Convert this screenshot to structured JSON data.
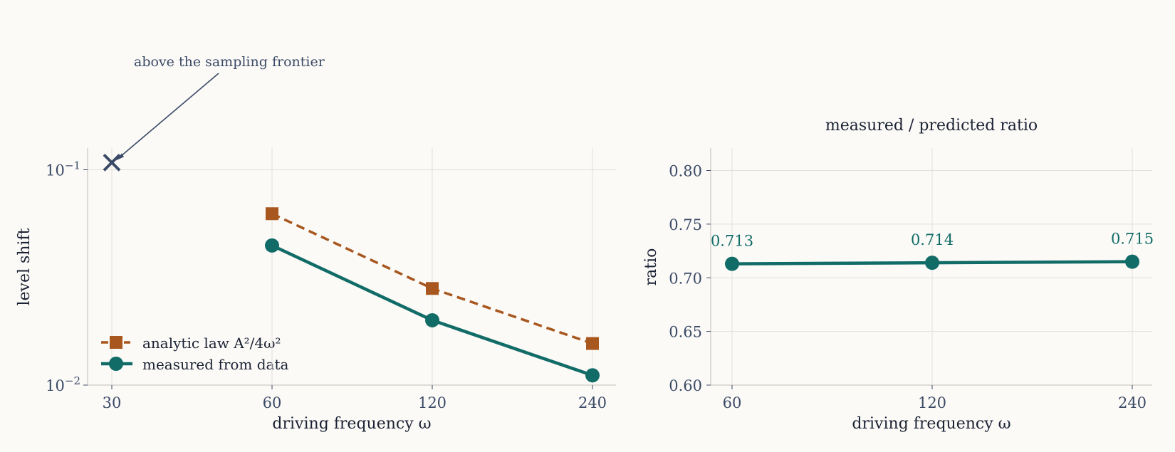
{
  "colors": {
    "background": "#fbfaf7",
    "measured": "#116b67",
    "analytic": "#a8571e",
    "annotation": "#3b4a66",
    "grid": "#e3e0db",
    "spine": "#cfcbc5",
    "tick_text": "#3b4a66",
    "label_text": "#1b2233"
  },
  "chart_data": [
    {
      "type": "line",
      "title": "",
      "xlabel": "driving frequency ω",
      "ylabel": "level shift",
      "x_scale": "log2",
      "y_scale": "log",
      "x_ticks": [
        30,
        60,
        120,
        240
      ],
      "x_tick_labels": [
        "30",
        "60",
        "120",
        "240"
      ],
      "y_ticks": [
        0.01,
        0.1
      ],
      "y_tick_labels": {
        "low": {
          "base": "10",
          "exp": "−2"
        },
        "high": {
          "base": "10",
          "exp": "−1"
        }
      },
      "ylim": [
        0.01,
        0.125
      ],
      "grid": true,
      "legend_position": "lower-left",
      "series": [
        {
          "name": "analytic law A²/4ω²",
          "marker": "square",
          "style": "dashed",
          "x": [
            60,
            120,
            240
          ],
          "values": [
            0.0625,
            0.0281,
            0.0156
          ]
        },
        {
          "name": "measured from data",
          "marker": "circle",
          "style": "solid",
          "x": [
            60,
            120,
            240
          ],
          "values": [
            0.0445,
            0.02,
            0.0111
          ]
        }
      ],
      "annotations": [
        {
          "text": "above the sampling frontier",
          "marker": "x",
          "x": 30,
          "y": 0.108
        }
      ]
    },
    {
      "type": "line",
      "title": "measured / predicted ratio",
      "xlabel": "driving frequency ω",
      "ylabel": "ratio",
      "x_scale": "log2",
      "x_ticks": [
        60,
        120,
        240
      ],
      "x_tick_labels": [
        "60",
        "120",
        "240"
      ],
      "y_ticks": [
        0.6,
        0.65,
        0.7,
        0.75,
        0.8
      ],
      "y_tick_labels": [
        "0.60",
        "0.65",
        "0.70",
        "0.75",
        "0.80"
      ],
      "ylim": [
        0.6,
        0.82
      ],
      "grid": true,
      "series": [
        {
          "name": "",
          "marker": "circle",
          "style": "solid",
          "x": [
            60,
            120,
            240
          ],
          "values": [
            0.713,
            0.714,
            0.715
          ],
          "labels": [
            "0.713",
            "0.714",
            "0.715"
          ]
        }
      ]
    }
  ]
}
